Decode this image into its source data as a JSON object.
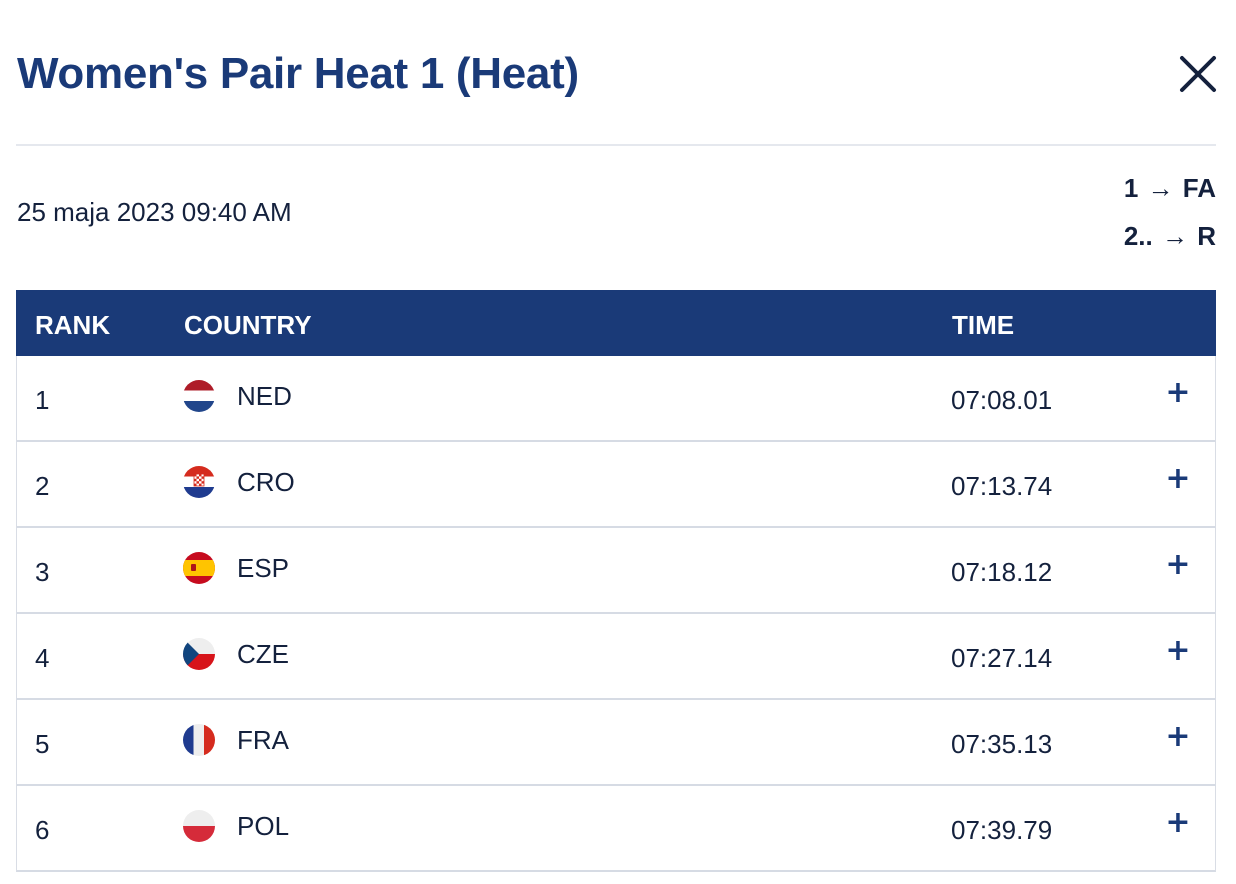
{
  "header": {
    "title": "Women's Pair Heat 1 (Heat)",
    "close_icon": "close-icon"
  },
  "info": {
    "date": "25 maja 2023 09:40 AM",
    "progression": [
      {
        "ranks": "1",
        "arrow": "→",
        "target": "FA"
      },
      {
        "ranks": "2..",
        "arrow": "→",
        "target": "R"
      }
    ]
  },
  "table": {
    "columns": {
      "rank": "RANK",
      "country": "COUNTRY",
      "time": "TIME"
    },
    "rows": [
      {
        "rank": "1",
        "country": "NED",
        "flag": "netherlands-flag-icon",
        "time": "07:08.01",
        "expand": "+"
      },
      {
        "rank": "2",
        "country": "CRO",
        "flag": "croatia-flag-icon",
        "time": "07:13.74",
        "expand": "+"
      },
      {
        "rank": "3",
        "country": "ESP",
        "flag": "spain-flag-icon",
        "time": "07:18.12",
        "expand": "+"
      },
      {
        "rank": "4",
        "country": "CZE",
        "flag": "czech-flag-icon",
        "time": "07:27.14",
        "expand": "+"
      },
      {
        "rank": "5",
        "country": "FRA",
        "flag": "france-flag-icon",
        "time": "07:35.13",
        "expand": "+"
      },
      {
        "rank": "6",
        "country": "POL",
        "flag": "poland-flag-icon",
        "time": "07:39.79",
        "expand": "+"
      }
    ]
  },
  "colors": {
    "primary": "#1a3a78",
    "text": "#14213d",
    "divider": "#e5e8ee",
    "row_border": "#d6dbe4"
  }
}
